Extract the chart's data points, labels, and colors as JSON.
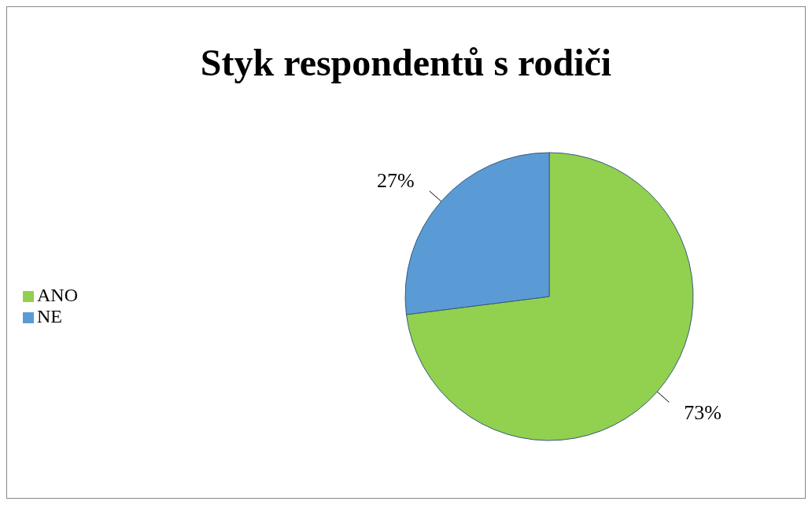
{
  "chart_data": {
    "type": "pie",
    "title": "Styk respondentů s rodiči",
    "categories": [
      "ANO",
      "NE"
    ],
    "values": [
      73,
      27
    ],
    "colors": [
      "#92d050",
      "#5b9bd5"
    ],
    "value_labels": [
      "73%",
      "27%"
    ],
    "legend": "left"
  }
}
